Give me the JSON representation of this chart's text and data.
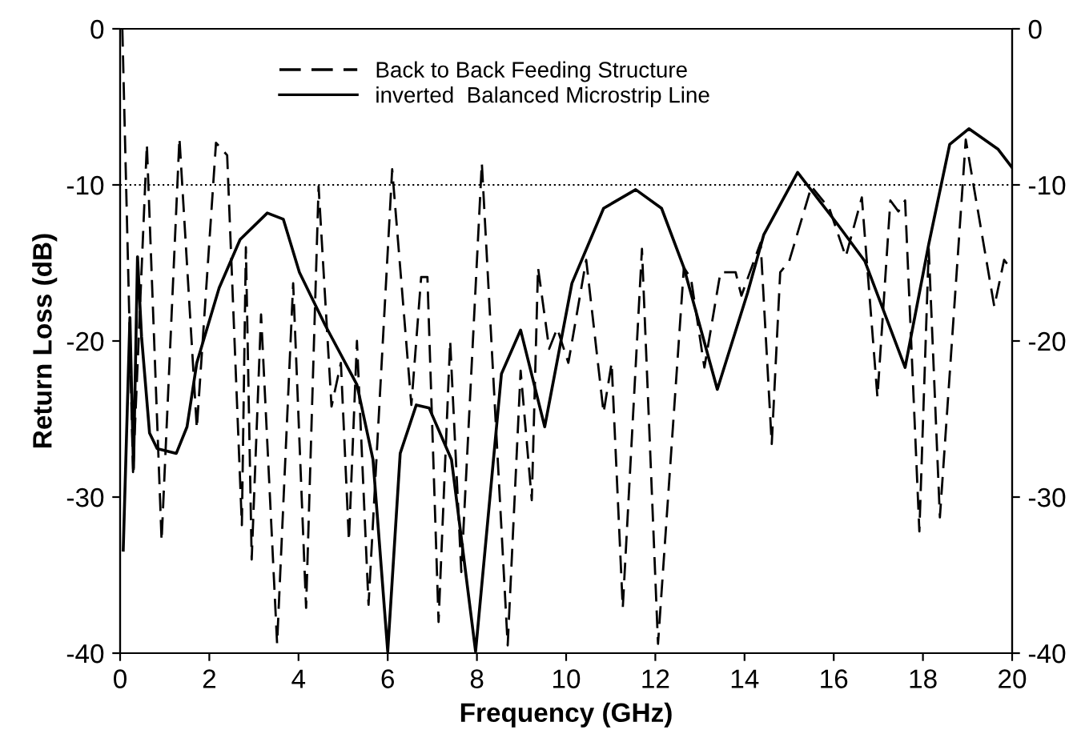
{
  "chart_data": {
    "type": "line",
    "xlabel": "Frequency (GHz)",
    "ylabel": "Return Loss (dB)",
    "xlim": [
      0,
      20
    ],
    "xticks": [
      0,
      2,
      4,
      6,
      8,
      10,
      12,
      14,
      16,
      18,
      20
    ],
    "ylim": [
      -40,
      0
    ],
    "yticks": [
      -40,
      -30,
      -20,
      -10,
      0
    ],
    "y2lim": [
      -40,
      0
    ],
    "y2ticks": [
      -40,
      -30,
      -20,
      -10,
      0
    ],
    "grid": false,
    "legend": "top",
    "marker": "none",
    "ref_lines": [
      {
        "axis": "y",
        "value": -10,
        "line_style": "dotted",
        "color": "#000000"
      }
    ],
    "series": [
      {
        "name": "Back to Back Feeding Structure",
        "color": "#000000",
        "line_style": "dashed",
        "x": [
          0.05,
          0.29,
          0.6,
          0.93,
          1.33,
          1.72,
          2.15,
          2.4,
          2.73,
          2.82,
          2.95,
          3.16,
          3.52,
          3.88,
          4.17,
          4.45,
          4.74,
          4.95,
          5.13,
          5.31,
          5.57,
          6.1,
          6.53,
          6.75,
          6.89,
          7.14,
          7.4,
          7.65,
          8.11,
          8.69,
          8.98,
          9.23,
          9.37,
          9.62,
          9.8,
          10.05,
          10.45,
          10.84,
          11.02,
          11.27,
          11.7,
          12.06,
          12.64,
          12.8,
          13.1,
          13.46,
          13.8,
          13.93,
          14.36,
          14.61,
          14.8,
          15.0,
          15.5,
          15.9,
          16.27,
          16.63,
          16.98,
          17.27,
          17.45,
          17.6,
          17.92,
          18.13,
          18.38,
          18.96,
          19.6,
          19.82,
          20
        ],
        "values": [
          0,
          -28.4,
          -7.4,
          -32.8,
          -7.0,
          -25.6,
          -7.3,
          -8.1,
          -31.8,
          -14,
          -34,
          -18.3,
          -39.4,
          -16.3,
          -37.1,
          -10.1,
          -24.2,
          -21.4,
          -32.8,
          -20.0,
          -36.9,
          -9.0,
          -24.1,
          -15.9,
          -15.9,
          -38,
          -20.0,
          -34.8,
          -8.6,
          -39.5,
          -21.9,
          -30.2,
          -15.3,
          -20.5,
          -19.2,
          -21.4,
          -14.8,
          -24.6,
          -21.4,
          -37.1,
          -14.1,
          -39.4,
          -15.3,
          -16,
          -21.7,
          -15.6,
          -15.6,
          -17.1,
          -13.7,
          -26.6,
          -15.6,
          -14.9,
          -10.1,
          -11.5,
          -14.6,
          -10.8,
          -23.6,
          -11.0,
          -11.7,
          -11.0,
          -32.2,
          -14.1,
          -31.3,
          -7.1,
          -17.8,
          -14.8,
          -15.5
        ]
      },
      {
        "name": "inverted  Balanced Microstrip Line",
        "color": "#000000",
        "line_style": "solid",
        "x": [
          0.07,
          0.22,
          0.3,
          0.39,
          0.48,
          0.66,
          0.83,
          1.26,
          1.5,
          1.72,
          2.22,
          2.69,
          3.3,
          3.66,
          4.02,
          4.6,
          5.31,
          5.67,
          6.0,
          6.28,
          6.64,
          6.93,
          7.43,
          7.97,
          8.55,
          8.98,
          9.52,
          10.13,
          10.84,
          11.56,
          12.14,
          12.64,
          13.39,
          14.07,
          14.43,
          15.19,
          16.08,
          16.7,
          17.6,
          18.13,
          18.6,
          19.03,
          19.68,
          20
        ],
        "values": [
          -33.4,
          -18.5,
          -28.2,
          -14.6,
          -19.7,
          -25.9,
          -26.9,
          -27.2,
          -25.5,
          -21.4,
          -16.6,
          -13.5,
          -11.8,
          -12.2,
          -15.6,
          -19.0,
          -22.8,
          -27.6,
          -39.9,
          -27.2,
          -24.1,
          -24.3,
          -27.6,
          -39.9,
          -22.1,
          -19.3,
          -25.5,
          -16.3,
          -11.5,
          -10.3,
          -11.5,
          -15.3,
          -23.1,
          -16.9,
          -13.2,
          -9.2,
          -12.5,
          -14.9,
          -21.7,
          -13.8,
          -7.4,
          -6.4,
          -7.7,
          -8.9
        ]
      }
    ]
  }
}
